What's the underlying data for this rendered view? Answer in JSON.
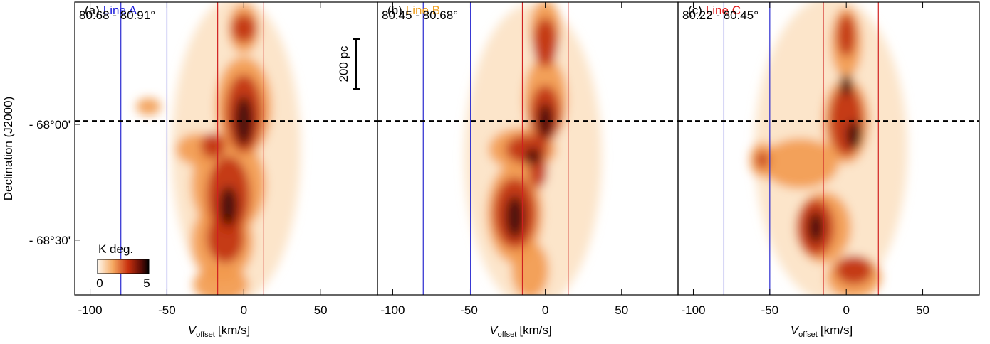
{
  "chart_data": [
    {
      "type": "pv-map",
      "panel_label": "(a)",
      "title": "Line A",
      "title_color": "#1a1adc",
      "range_label": "80.68 - 80.91°",
      "xlabel": "V",
      "xlabel_sub": "offset",
      "xlabel_unit": "[km/s]",
      "ylabel": "Declination (J2000)",
      "xlim": [
        -110,
        87
      ],
      "xticks": [
        -100,
        -50,
        0,
        50
      ],
      "ylim": [
        -68.737,
        -67.472
      ],
      "yticks": [
        {
          "value": -68.0,
          "label": "- 68°00'"
        },
        {
          "value": -68.5,
          "label": "- 68°30'"
        }
      ],
      "hline": -67.985,
      "vlines": [
        {
          "color": "#2a2ad0",
          "values": [
            -80,
            -50
          ]
        },
        {
          "color": "#d02020",
          "values": [
            -17,
            13
          ]
        }
      ],
      "colorbar": {
        "label": "K deg.",
        "ticks": [
          0,
          5
        ]
      }
    },
    {
      "type": "pv-map",
      "panel_label": "(b)",
      "title": "Line B",
      "title_color": "#f0a020",
      "range_label": "80.45 - 80.68°",
      "xlabel": "V",
      "xlabel_sub": "offset",
      "xlabel_unit": "[km/s]",
      "xlim": [
        -110,
        87
      ],
      "xticks": [
        -100,
        -50,
        0,
        50
      ],
      "ylim": [
        -68.737,
        -67.472
      ],
      "hline": -67.985,
      "vlines": [
        {
          "color": "#2a2ad0",
          "values": [
            -80,
            -49
          ]
        },
        {
          "color": "#d02020",
          "values": [
            -15,
            15
          ]
        }
      ],
      "scale_bar": "200 pc"
    },
    {
      "type": "pv-map",
      "panel_label": "(c)",
      "title": "Line C",
      "title_color": "#e01818",
      "range_label": "80.22 - 80.45°",
      "xlabel": "V",
      "xlabel_sub": "offset",
      "xlabel_unit": "[km/s]",
      "xlim": [
        -110,
        87
      ],
      "xticks": [
        -100,
        -50,
        0,
        50
      ],
      "ylim": [
        -68.737,
        -67.472
      ],
      "hline": -67.985,
      "vlines": [
        {
          "color": "#2a2ad0",
          "values": [
            -80,
            -50
          ]
        },
        {
          "color": "#d02020",
          "values": [
            -15,
            21
          ]
        }
      ]
    }
  ]
}
